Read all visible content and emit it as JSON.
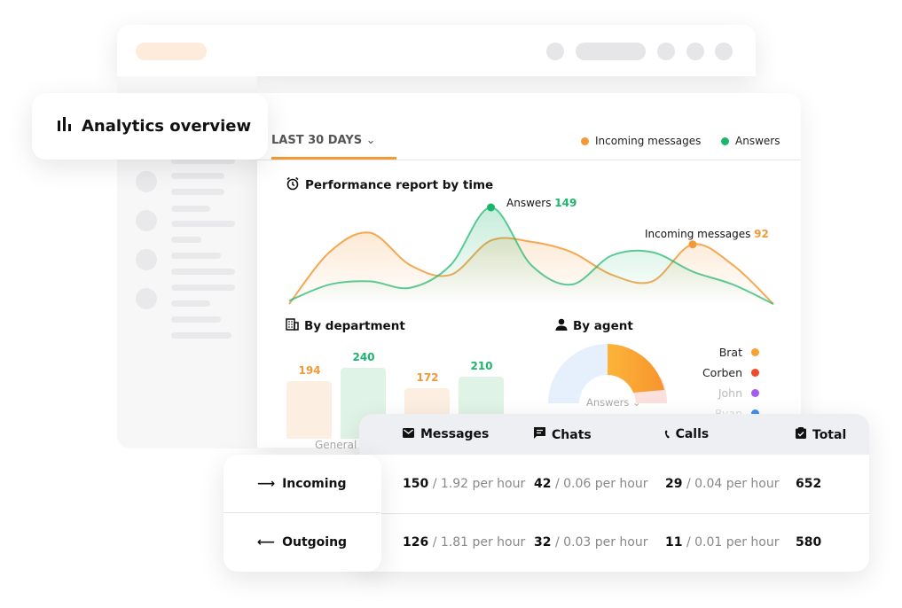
{
  "title": "Analytics overview",
  "filter": {
    "label": "LAST 30 DAYS"
  },
  "legend": [
    {
      "label": "Incoming messages",
      "color": "#f29a38"
    },
    {
      "label": "Answers",
      "color": "#1db56c"
    }
  ],
  "performance": {
    "title": "Performance report by time",
    "annotations": [
      {
        "label": "Answers",
        "value": "149",
        "color": "#1db56c"
      },
      {
        "label": "Incoming messages",
        "value": "92",
        "color": "#f29a38"
      }
    ]
  },
  "chart_data": [
    {
      "type": "area",
      "title": "Performance report by time",
      "series": [
        {
          "name": "Incoming messages",
          "color": "#f29a38",
          "values": [
            0,
            80,
            110,
            60,
            45,
            98,
            96,
            80,
            45,
            35,
            92,
            60,
            0
          ]
        },
        {
          "name": "Answers",
          "color": "#1db56c",
          "values": [
            5,
            30,
            35,
            25,
            60,
            149,
            60,
            30,
            75,
            80,
            50,
            30,
            0
          ]
        }
      ],
      "ylim": [
        0,
        149
      ],
      "grid": false
    },
    {
      "type": "bar",
      "title": "By department",
      "categories": [
        "General",
        ""
      ],
      "series": [
        {
          "name": "Incoming messages",
          "color": "#f29a38",
          "values": [
            194,
            172
          ]
        },
        {
          "name": "Answers",
          "color": "#1db56c",
          "values": [
            240,
            210
          ]
        }
      ]
    },
    {
      "type": "pie",
      "title": "By agent",
      "selector": "Answers",
      "labels": [
        "Brat",
        "Corben",
        "John",
        "Ryan"
      ],
      "colors": [
        "#f7a233",
        "#f04a2a",
        "#a55af0",
        "#3d8ef0"
      ]
    }
  ],
  "department": {
    "title": "By department",
    "category": "General"
  },
  "agent": {
    "title": "By agent",
    "selector": "Answers",
    "agents": [
      "Brat",
      "Corben",
      "John",
      "Ryan"
    ]
  },
  "table": {
    "columns": [
      "Messages",
      "Chats",
      "Calls",
      "Total"
    ],
    "rows": [
      {
        "label": "Incoming",
        "messages": "150",
        "messages_rate": "/ 1.92 per hour",
        "chats": "42",
        "chats_rate": "/ 0.06 per hour",
        "calls": "29",
        "calls_rate": "/ 0.04 per hour",
        "total": "652"
      },
      {
        "label": "Outgoing",
        "messages": "126",
        "messages_rate": "/ 1.81 per hour",
        "chats": "32",
        "chats_rate": "/ 0.03 per hour",
        "calls": "11",
        "calls_rate": "/ 0.01 per hour",
        "total": "580"
      }
    ]
  }
}
